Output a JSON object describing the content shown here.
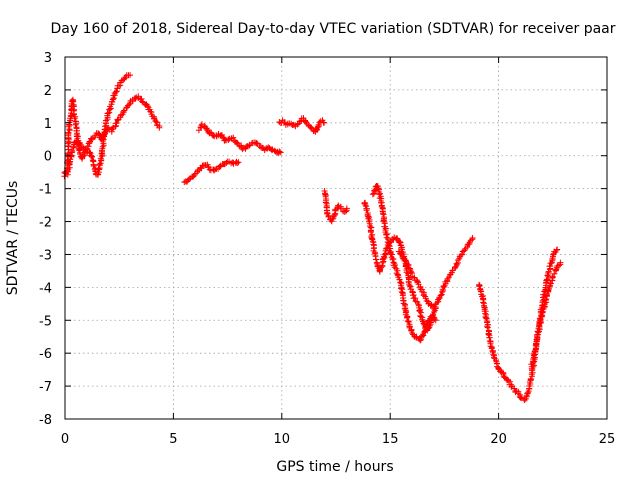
{
  "chart_data": {
    "type": "scatter",
    "title": "Day 160 of 2018, Sidereal Day-to-day VTEC variation (SDTVAR) for receiver paar",
    "xlabel": "GPS time / hours",
    "ylabel": "SDTVAR / TECUs",
    "xlim": [
      0,
      25
    ],
    "ylim": [
      -8,
      3
    ],
    "xticks": [
      0,
      5,
      10,
      15,
      20,
      25
    ],
    "yticks": [
      -8,
      -7,
      -6,
      -5,
      -4,
      -3,
      -2,
      -1,
      0,
      1,
      2,
      3
    ],
    "grid": true,
    "marker": "+",
    "color": "#ff0000",
    "series": [
      {
        "segments": [
          [
            [
              0.0,
              -0.6
            ],
            [
              0.1,
              -0.4
            ],
            [
              0.15,
              0.3
            ],
            [
              0.2,
              0.9
            ],
            [
              0.3,
              1.4
            ],
            [
              0.35,
              1.7
            ],
            [
              0.45,
              1.2
            ],
            [
              0.55,
              0.6
            ],
            [
              0.7,
              0.35
            ],
            [
              0.85,
              0.2
            ],
            [
              1.0,
              0.15
            ],
            [
              1.15,
              0.1
            ],
            [
              1.3,
              -0.2
            ],
            [
              1.4,
              -0.5
            ],
            [
              1.5,
              -0.6
            ],
            [
              1.6,
              -0.35
            ],
            [
              1.7,
              0.0
            ],
            [
              1.8,
              0.6
            ],
            [
              1.9,
              1.0
            ],
            [
              2.0,
              1.3
            ],
            [
              2.15,
              1.6
            ],
            [
              2.3,
              1.9
            ],
            [
              2.45,
              2.1
            ],
            [
              2.6,
              2.25
            ],
            [
              2.75,
              2.35
            ],
            [
              2.9,
              2.45
            ],
            [
              3.0,
              2.45
            ]
          ],
          [
            [
              0.0,
              -0.5
            ],
            [
              0.1,
              -0.55
            ],
            [
              0.2,
              -0.3
            ],
            [
              0.3,
              0.0
            ],
            [
              0.4,
              0.3
            ],
            [
              0.5,
              0.45
            ],
            [
              0.6,
              0.3
            ],
            [
              0.7,
              0.0
            ],
            [
              0.8,
              -0.1
            ],
            [
              0.9,
              0.05
            ],
            [
              1.0,
              0.2
            ],
            [
              1.1,
              0.3
            ],
            [
              1.2,
              0.5
            ],
            [
              1.35,
              0.6
            ],
            [
              1.5,
              0.7
            ],
            [
              1.7,
              0.5
            ],
            [
              1.85,
              0.7
            ],
            [
              2.0,
              0.85
            ],
            [
              2.15,
              0.75
            ],
            [
              2.3,
              0.9
            ],
            [
              2.45,
              1.1
            ],
            [
              2.6,
              1.25
            ],
            [
              2.75,
              1.4
            ],
            [
              2.9,
              1.5
            ],
            [
              3.05,
              1.65
            ],
            [
              3.2,
              1.75
            ],
            [
              3.35,
              1.8
            ],
            [
              3.5,
              1.7
            ],
            [
              3.65,
              1.6
            ],
            [
              3.8,
              1.5
            ],
            [
              3.95,
              1.35
            ],
            [
              4.1,
              1.15
            ],
            [
              4.25,
              0.95
            ],
            [
              4.35,
              0.85
            ]
          ],
          [
            [
              5.5,
              -0.8
            ],
            [
              5.65,
              -0.75
            ],
            [
              5.8,
              -0.7
            ],
            [
              5.95,
              -0.6
            ],
            [
              6.1,
              -0.5
            ],
            [
              6.25,
              -0.4
            ],
            [
              6.4,
              -0.3
            ],
            [
              6.55,
              -0.3
            ],
            [
              6.7,
              -0.4
            ],
            [
              6.85,
              -0.45
            ],
            [
              7.0,
              -0.4
            ],
            [
              7.15,
              -0.35
            ],
            [
              7.3,
              -0.25
            ],
            [
              7.45,
              -0.2
            ],
            [
              7.6,
              -0.2
            ],
            [
              7.75,
              -0.25
            ],
            [
              7.9,
              -0.2
            ],
            [
              8.0,
              -0.2
            ]
          ],
          [
            [
              6.2,
              0.8
            ],
            [
              6.35,
              0.95
            ],
            [
              6.5,
              0.85
            ],
            [
              6.65,
              0.7
            ],
            [
              6.8,
              0.65
            ],
            [
              6.95,
              0.6
            ],
            [
              7.1,
              0.65
            ],
            [
              7.25,
              0.6
            ],
            [
              7.4,
              0.45
            ],
            [
              7.55,
              0.5
            ],
            [
              7.7,
              0.55
            ],
            [
              7.85,
              0.45
            ],
            [
              8.0,
              0.35
            ],
            [
              8.15,
              0.25
            ],
            [
              8.3,
              0.2
            ],
            [
              8.45,
              0.3
            ],
            [
              8.6,
              0.35
            ],
            [
              8.75,
              0.4
            ],
            [
              8.9,
              0.35
            ],
            [
              9.05,
              0.25
            ],
            [
              9.2,
              0.2
            ],
            [
              9.35,
              0.25
            ],
            [
              9.5,
              0.2
            ],
            [
              9.65,
              0.15
            ],
            [
              9.8,
              0.1
            ],
            [
              9.95,
              0.1
            ]
          ],
          [
            [
              9.9,
              1.0
            ],
            [
              10.05,
              1.05
            ],
            [
              10.2,
              0.95
            ],
            [
              10.35,
              1.0
            ],
            [
              10.5,
              0.95
            ],
            [
              10.65,
              0.9
            ],
            [
              10.8,
              1.0
            ],
            [
              10.95,
              1.15
            ],
            [
              11.1,
              1.05
            ],
            [
              11.25,
              0.9
            ],
            [
              11.4,
              0.8
            ],
            [
              11.55,
              0.7
            ],
            [
              11.65,
              0.85
            ],
            [
              11.75,
              1.0
            ],
            [
              11.85,
              1.05
            ],
            [
              11.95,
              1.0
            ]
          ],
          [
            [
              12.0,
              -1.1
            ],
            [
              12.05,
              -1.5
            ],
            [
              12.1,
              -1.8
            ],
            [
              12.2,
              -1.9
            ],
            [
              12.3,
              -2.0
            ],
            [
              12.4,
              -1.85
            ],
            [
              12.5,
              -1.6
            ],
            [
              12.6,
              -1.5
            ],
            [
              12.7,
              -1.55
            ],
            [
              12.8,
              -1.65
            ],
            [
              12.9,
              -1.7
            ],
            [
              13.0,
              -1.6
            ]
          ],
          [
            [
              13.8,
              -1.4
            ],
            [
              13.9,
              -1.6
            ],
            [
              14.0,
              -1.9
            ],
            [
              14.1,
              -2.2
            ],
            [
              14.2,
              -2.6
            ],
            [
              14.3,
              -3.0
            ],
            [
              14.4,
              -3.3
            ],
            [
              14.5,
              -3.5
            ],
            [
              14.6,
              -3.4
            ],
            [
              14.7,
              -3.1
            ],
            [
              14.8,
              -2.9
            ],
            [
              14.9,
              -2.7
            ],
            [
              15.0,
              -2.6
            ],
            [
              15.1,
              -2.55
            ],
            [
              15.2,
              -2.5
            ],
            [
              15.3,
              -2.5
            ],
            [
              15.4,
              -2.55
            ],
            [
              15.5,
              -2.7
            ],
            [
              15.6,
              -3.0
            ],
            [
              15.7,
              -3.3
            ],
            [
              15.8,
              -3.6
            ],
            [
              15.9,
              -3.9
            ],
            [
              16.0,
              -4.1
            ],
            [
              16.1,
              -4.3
            ],
            [
              16.2,
              -4.4
            ],
            [
              16.3,
              -4.5
            ],
            [
              16.4,
              -4.8
            ],
            [
              16.5,
              -5.0
            ],
            [
              16.6,
              -5.2
            ],
            [
              16.7,
              -5.3
            ],
            [
              16.8,
              -5.2
            ],
            [
              16.9,
              -5.0
            ],
            [
              17.0,
              -4.8
            ],
            [
              17.1,
              -4.6
            ]
          ],
          [
            [
              14.2,
              -1.2
            ],
            [
              14.3,
              -1.0
            ],
            [
              14.4,
              -0.9
            ],
            [
              14.5,
              -1.1
            ],
            [
              14.6,
              -1.5
            ],
            [
              14.7,
              -1.9
            ],
            [
              14.8,
              -2.3
            ],
            [
              14.9,
              -2.6
            ],
            [
              15.0,
              -2.9
            ],
            [
              15.1,
              -3.1
            ],
            [
              15.2,
              -3.3
            ],
            [
              15.3,
              -3.5
            ],
            [
              15.4,
              -3.7
            ],
            [
              15.5,
              -3.9
            ],
            [
              15.6,
              -4.3
            ],
            [
              15.7,
              -4.7
            ],
            [
              15.8,
              -5.0
            ],
            [
              15.9,
              -5.2
            ],
            [
              16.0,
              -5.35
            ],
            [
              16.1,
              -5.45
            ],
            [
              16.2,
              -5.5
            ],
            [
              16.3,
              -5.55
            ],
            [
              16.4,
              -5.6
            ],
            [
              16.5,
              -5.5
            ],
            [
              16.6,
              -5.3
            ],
            [
              16.7,
              -5.1
            ],
            [
              16.8,
              -5.0
            ],
            [
              16.9,
              -4.9
            ],
            [
              17.0,
              -4.9
            ],
            [
              17.1,
              -5.0
            ]
          ],
          [
            [
              15.4,
              -2.9
            ],
            [
              15.6,
              -3.1
            ],
            [
              15.8,
              -3.3
            ],
            [
              16.0,
              -3.6
            ],
            [
              16.2,
              -3.8
            ],
            [
              16.4,
              -4.0
            ],
            [
              16.6,
              -4.3
            ],
            [
              16.8,
              -4.5
            ],
            [
              17.0,
              -4.6
            ],
            [
              17.2,
              -4.4
            ],
            [
              17.4,
              -4.1
            ],
            [
              17.6,
              -3.8
            ],
            [
              17.8,
              -3.6
            ],
            [
              18.0,
              -3.4
            ],
            [
              18.2,
              -3.1
            ],
            [
              18.4,
              -2.9
            ],
            [
              18.6,
              -2.7
            ],
            [
              18.8,
              -2.5
            ]
          ],
          [
            [
              19.1,
              -3.9
            ],
            [
              19.2,
              -4.1
            ],
            [
              19.3,
              -4.4
            ],
            [
              19.4,
              -4.8
            ],
            [
              19.5,
              -5.2
            ],
            [
              19.6,
              -5.6
            ],
            [
              19.7,
              -5.9
            ],
            [
              19.8,
              -6.1
            ],
            [
              19.9,
              -6.3
            ],
            [
              20.0,
              -6.45
            ],
            [
              20.1,
              -6.55
            ],
            [
              20.2,
              -6.6
            ],
            [
              20.3,
              -6.75
            ],
            [
              20.4,
              -6.8
            ],
            [
              20.5,
              -6.9
            ],
            [
              20.6,
              -7.0
            ],
            [
              20.7,
              -7.05
            ],
            [
              20.8,
              -7.15
            ],
            [
              20.9,
              -7.2
            ],
            [
              21.0,
              -7.3
            ],
            [
              21.1,
              -7.35
            ],
            [
              21.2,
              -7.4
            ],
            [
              21.3,
              -7.3
            ],
            [
              21.4,
              -7.1
            ],
            [
              21.5,
              -6.8
            ],
            [
              21.6,
              -6.4
            ],
            [
              21.7,
              -5.9
            ],
            [
              21.8,
              -5.4
            ],
            [
              21.9,
              -5.0
            ],
            [
              22.0,
              -4.6
            ],
            [
              22.1,
              -4.2
            ],
            [
              22.2,
              -3.9
            ],
            [
              22.3,
              -3.6
            ],
            [
              22.4,
              -3.3
            ],
            [
              22.5,
              -3.1
            ],
            [
              22.6,
              -2.9
            ],
            [
              22.7,
              -2.85
            ]
          ],
          [
            [
              21.5,
              -6.5
            ],
            [
              21.65,
              -6.0
            ],
            [
              21.8,
              -5.5
            ],
            [
              21.95,
              -5.0
            ],
            [
              22.1,
              -4.6
            ],
            [
              22.25,
              -4.2
            ],
            [
              22.4,
              -3.9
            ],
            [
              22.55,
              -3.6
            ],
            [
              22.7,
              -3.4
            ],
            [
              22.85,
              -3.25
            ]
          ]
        ]
      }
    ]
  }
}
